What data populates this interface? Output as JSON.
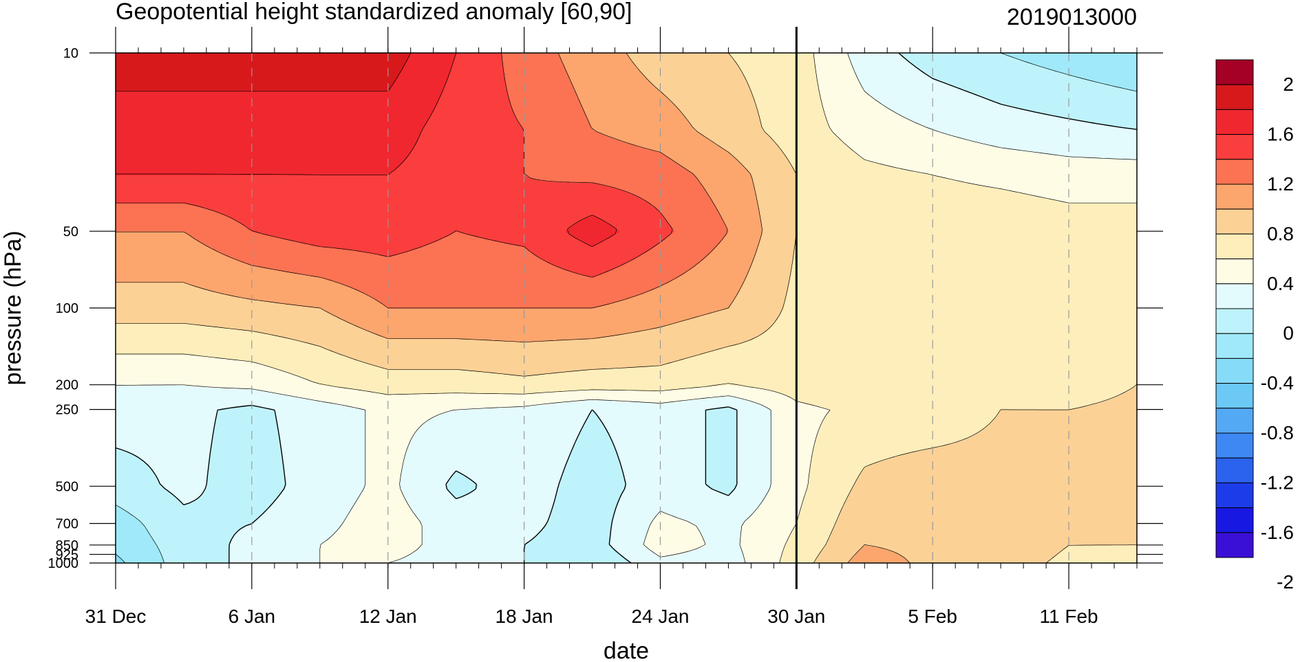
{
  "chart_data": {
    "type": "heatmap",
    "title": "Geopotential height standardized anomaly [60,90]",
    "init_label": "2019013000",
    "xlabel": "date",
    "ylabel": "pressure (hPa)",
    "x_start": "2018-12-31",
    "x_end": "2019-02-14",
    "x_ticks": [
      {
        "date": "2018-12-31",
        "label": "31 Dec"
      },
      {
        "date": "2019-01-06",
        "label": "6 Jan"
      },
      {
        "date": "2019-01-12",
        "label": "12 Jan"
      },
      {
        "date": "2019-01-18",
        "label": "18 Jan"
      },
      {
        "date": "2019-01-24",
        "label": "24 Jan"
      },
      {
        "date": "2019-01-30",
        "label": "30 Jan"
      },
      {
        "date": "2019-02-05",
        "label": "5 Feb"
      },
      {
        "date": "2019-02-11",
        "label": "11 Feb"
      }
    ],
    "forecast_start": "2019-01-30",
    "y_scale": "log",
    "y_range": [
      1000,
      10
    ],
    "y_ticks": [
      {
        "value": 10,
        "label": "10"
      },
      {
        "value": 50,
        "label": "50"
      },
      {
        "value": 100,
        "label": "100"
      },
      {
        "value": 200,
        "label": "200"
      },
      {
        "value": 250,
        "label": "250"
      },
      {
        "value": 500,
        "label": "500"
      },
      {
        "value": 700,
        "label": "700"
      },
      {
        "value": 850,
        "label": "850"
      },
      {
        "value": 925,
        "label": "925"
      },
      {
        "value": 1000,
        "label": "1000"
      }
    ],
    "levels": [
      -2,
      -1.8,
      -1.6,
      -1.4,
      -1.2,
      -1,
      -0.8,
      -0.6,
      -0.4,
      -0.2,
      0,
      0.2,
      0.4,
      0.6,
      0.8,
      1,
      1.2,
      1.4,
      1.6,
      1.8,
      2
    ],
    "colorbar_labels": [
      "2",
      "1.6",
      "1.2",
      "0.8",
      "0.4",
      "0",
      "-0.4",
      "-0.8",
      "-1.2",
      "-1.6",
      "-2"
    ],
    "colorbar_colors": [
      "#a50026",
      "#d7191c",
      "#f0272f",
      "#fa3e3e",
      "#fb7353",
      "#fca66e",
      "#fcd196",
      "#fdeebb",
      "#fffce6",
      "#e4fbfd",
      "#bff3fb",
      "#9fe9fa",
      "#86dcf8",
      "#6cc9f6",
      "#54a9f5",
      "#3d88f3",
      "#2b62ee",
      "#1d3ce9",
      "#1719e2",
      "#3a10d6"
    ],
    "series": [
      {
        "pressure": 10,
        "values": [
          1.7,
          1.7,
          1.7,
          1.7,
          1.7,
          1.4,
          1.1,
          0.9,
          0.7,
          0.6,
          0.5,
          0.1,
          -0.1,
          -0.2,
          -0.3,
          -0.4
        ]
      },
      {
        "pressure": 20,
        "values": [
          1.5,
          1.5,
          1.5,
          1.5,
          1.5,
          1.3,
          1.2,
          1.0,
          0.9,
          0.7,
          0.5,
          0.3,
          0.2,
          0.1,
          0.05,
          0.0
        ]
      },
      {
        "pressure": 30,
        "values": [
          1.4,
          1.4,
          1.4,
          1.4,
          1.4,
          1.3,
          1.2,
          1.15,
          1.1,
          0.9,
          0.6,
          0.45,
          0.4,
          0.35,
          0.3,
          0.3
        ]
      },
      {
        "pressure": 50,
        "values": [
          1.0,
          1.0,
          1.2,
          1.3,
          1.3,
          1.2,
          1.25,
          1.5,
          1.25,
          1.0,
          0.6,
          0.55,
          0.55,
          0.55,
          0.5,
          0.5
        ]
      },
      {
        "pressure": 100,
        "values": [
          0.7,
          0.7,
          0.75,
          0.8,
          1.0,
          1.0,
          1.0,
          1.0,
          0.9,
          0.8,
          0.55,
          0.55,
          0.55,
          0.55,
          0.5,
          0.5
        ]
      },
      {
        "pressure": 200,
        "values": [
          0.2,
          0.2,
          0.25,
          0.4,
          0.5,
          0.5,
          0.55,
          0.5,
          0.5,
          0.4,
          0.5,
          0.6,
          0.6,
          0.55,
          0.5,
          0.6
        ]
      },
      {
        "pressure": 250,
        "values": [
          0.1,
          0.05,
          -0.05,
          0.1,
          0.25,
          0.2,
          0.15,
          0.0,
          0.1,
          -0.05,
          0.35,
          0.45,
          0.45,
          0.6,
          0.6,
          0.65
        ]
      },
      {
        "pressure": 500,
        "values": [
          -0.1,
          0.05,
          -0.1,
          0.1,
          0.25,
          -0.05,
          0.1,
          -0.1,
          0.1,
          -0.05,
          0.35,
          0.65,
          0.75,
          0.7,
          0.7,
          0.75
        ]
      },
      {
        "pressure": 700,
        "values": [
          -0.3,
          -0.05,
          0.0,
          0.15,
          0.3,
          0.1,
          0.05,
          -0.1,
          0.25,
          0.15,
          0.4,
          0.75,
          0.75,
          0.7,
          0.7,
          0.7
        ]
      },
      {
        "pressure": 850,
        "values": [
          -0.35,
          -0.1,
          0.05,
          0.2,
          0.3,
          0.1,
          0.0,
          -0.1,
          0.3,
          0.15,
          0.45,
          0.8,
          0.75,
          0.75,
          0.6,
          0.6
        ]
      },
      {
        "pressure": 1000,
        "values": [
          -0.45,
          -0.1,
          0.05,
          0.2,
          0.2,
          0.1,
          0.0,
          -0.2,
          0.15,
          0.1,
          0.5,
          0.9,
          0.75,
          0.7,
          0.55,
          0.5
        ]
      }
    ],
    "series_dates": [
      "2018-12-31",
      "2019-01-03",
      "2019-01-06",
      "2019-01-09",
      "2019-01-12",
      "2019-01-15",
      "2019-01-18",
      "2019-01-21",
      "2019-01-24",
      "2019-01-27",
      "2019-01-30",
      "2019-02-02",
      "2019-02-05",
      "2019-02-08",
      "2019-02-11",
      "2019-02-14"
    ],
    "grid": "dashed vertical lines at date ticks",
    "legend": "colorbar right"
  }
}
